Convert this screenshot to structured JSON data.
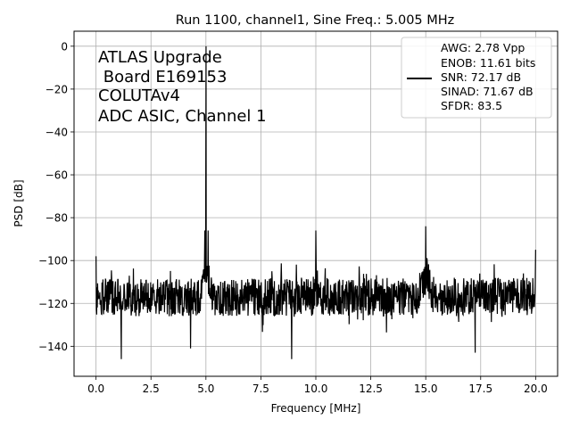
{
  "chart_data": {
    "type": "line",
    "title": "Run 1100, channel1, Sine Freq.: 5.005 MHz",
    "xlabel": "Frequency [MHz]",
    "ylabel": "PSD [dB]",
    "xlim": [
      -1.0,
      21.0
    ],
    "ylim": [
      -154,
      7
    ],
    "xticks": [
      0.0,
      2.5,
      5.0,
      7.5,
      10.0,
      12.5,
      15.0,
      17.5,
      20.0
    ],
    "xtick_labels": [
      "0.0",
      "2.5",
      "5.0",
      "7.5",
      "10.0",
      "12.5",
      "15.0",
      "17.5",
      "20.0"
    ],
    "yticks": [
      0,
      -20,
      -40,
      -60,
      -80,
      -100,
      -120,
      -140
    ],
    "ytick_labels": [
      "0",
      "−20",
      "−40",
      "−60",
      "−80",
      "−100",
      "−120",
      "−140"
    ],
    "grid": true,
    "annotation_lines": [
      "ATLAS Upgrade",
      " Board E169153",
      "COLUTAv4",
      "ADC ASIC, Channel 1"
    ],
    "legend": {
      "placement": "top-right",
      "lines": [
        "AWG: 2.78 Vpp",
        "ENOB: 11.61 bits",
        "SNR: 72.17 dB",
        "SINAD: 71.67 dB",
        "SFDR: 83.5"
      ]
    },
    "series": [
      {
        "color": "#000000",
        "noise_floor_db": -117,
        "features": [
          {
            "x": 0.0,
            "y": -98
          },
          {
            "x": 1.15,
            "y": -146
          },
          {
            "x": 4.3,
            "y": -141
          },
          {
            "x": 4.95,
            "y": -86
          },
          {
            "x": 5.005,
            "y": 0
          },
          {
            "x": 5.1,
            "y": -86
          },
          {
            "x": 8.9,
            "y": -146
          },
          {
            "x": 10.0,
            "y": -86
          },
          {
            "x": 15.0,
            "y": -84
          },
          {
            "x": 17.25,
            "y": -143
          },
          {
            "x": 20.0,
            "y": -95
          }
        ]
      }
    ]
  }
}
